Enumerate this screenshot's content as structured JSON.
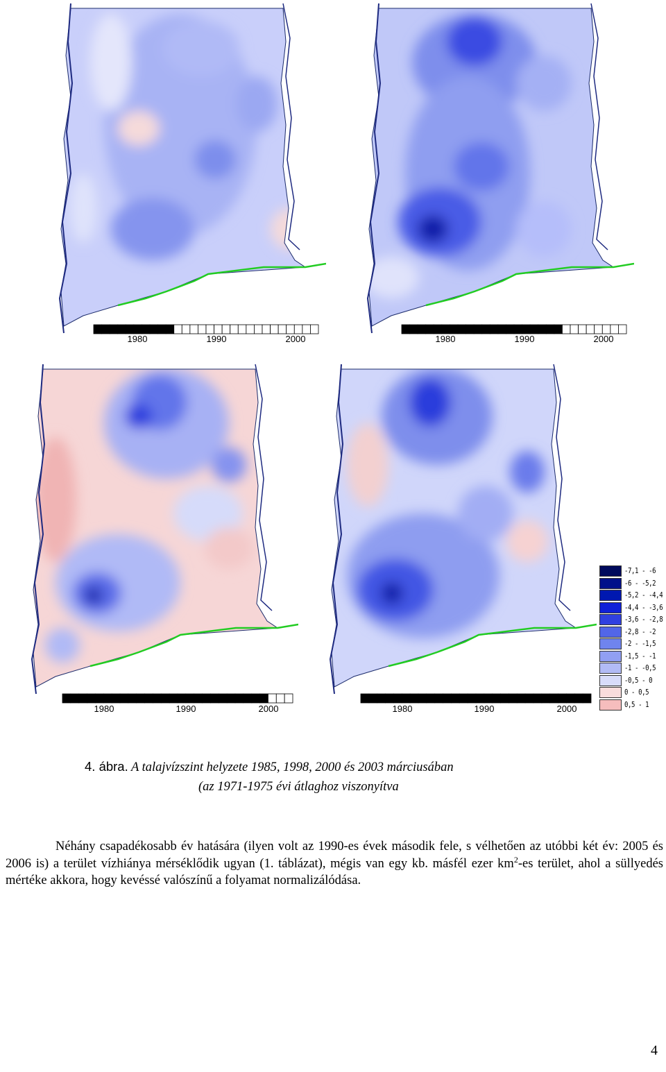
{
  "maps": [
    {
      "name": "map-1985",
      "timeline": {
        "ticks": [
          "1980",
          "1990",
          "2000"
        ],
        "filled_years": 10,
        "total_years": 28
      }
    },
    {
      "name": "map-1998",
      "timeline": {
        "ticks": [
          "1980",
          "1990",
          "2000"
        ],
        "filled_years": 20,
        "total_years": 28
      }
    },
    {
      "name": "map-2000",
      "timeline": {
        "ticks": [
          "1980",
          "1990",
          "2000"
        ],
        "filled_years": 25,
        "total_years": 28
      }
    },
    {
      "name": "map-2003",
      "timeline": {
        "ticks": [
          "1980",
          "1990",
          "2000"
        ],
        "filled_years": 28,
        "total_years": 28
      }
    }
  ],
  "legend": [
    {
      "label": "-7,1 - -6",
      "color": "#000a5c"
    },
    {
      "label": "-6 - -5,2",
      "color": "#00108a"
    },
    {
      "label": "-5,2 - -4,4",
      "color": "#0018b0"
    },
    {
      "label": "-4,4 - -3,6",
      "color": "#1020d8"
    },
    {
      "label": "-3,6 - -2,8",
      "color": "#3040e0"
    },
    {
      "label": "-2,8 - -2",
      "color": "#5266e8"
    },
    {
      "label": "-2 - -1,5",
      "color": "#6f84ee"
    },
    {
      "label": "-1,5 - -1",
      "color": "#919ff3"
    },
    {
      "label": "-1 - -0,5",
      "color": "#b2bbf6"
    },
    {
      "label": "-0,5 - 0",
      "color": "#d8dcfa"
    },
    {
      "label": "0 - 0,5",
      "color": "#f8dcdc"
    },
    {
      "label": "0,5 - 1",
      "color": "#f6bdbd"
    }
  ],
  "caption": {
    "fig_no": "4. ábra.",
    "line1": "A talajvízszint helyzete 1985, 1998, 2000 és 2003 márciusában",
    "line2": "(az 1971-1975 évi átlaghoz viszonyítva"
  },
  "body": {
    "part1": "Néhány csapadékosabb év hatására (ilyen volt az 1990-es évek második fele, s vélhetően az utóbbi két év: 2005 és 2006 is) a terület vízhiánya mérséklődik ugyan (1. táblázat), mégis van egy kb. másfél ezer km",
    "sup": "2",
    "part2": "-es terület, ahol a süllyedés mértéke akkora, hogy kevéssé valószínű a folyamat normalizálódása."
  },
  "page_number": "4"
}
